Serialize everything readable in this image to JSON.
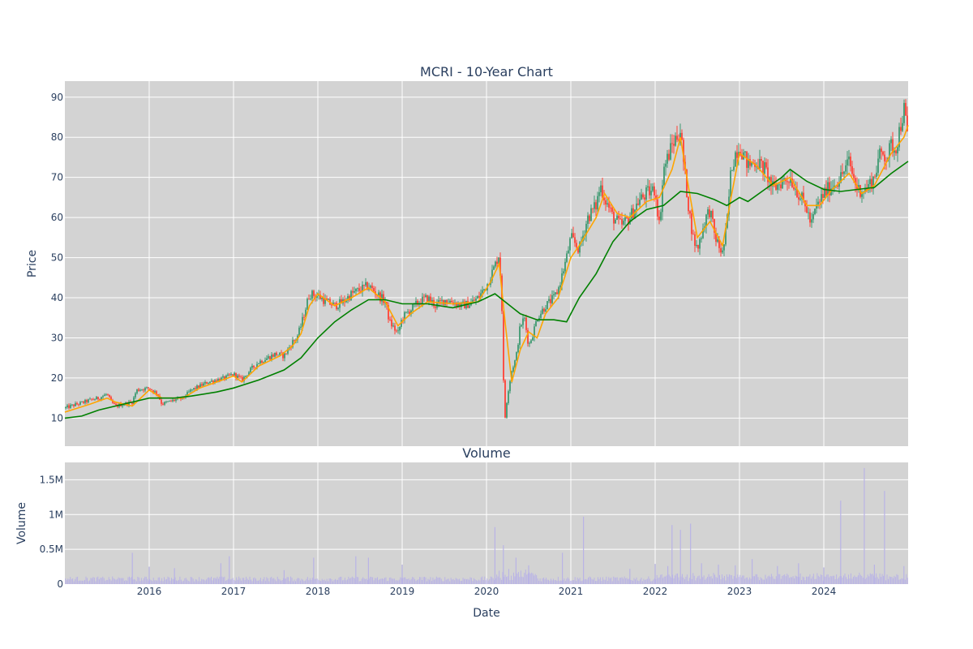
{
  "chart_data": [
    {
      "type": "candlestick",
      "title": "MCRI - 10-Year Chart",
      "ylabel": "Price",
      "ylim": [
        3,
        94
      ],
      "yticks": [
        10,
        20,
        30,
        40,
        50,
        60,
        70,
        80,
        90
      ],
      "grid": true,
      "colors": {
        "increasing": "#3d9970",
        "decreasing": "#ff4136",
        "ma_short": "#ffa500",
        "ma_long": "#008000",
        "plot_bg": "#d3d3d3"
      },
      "close_series": [
        [
          2015.0,
          12.5
        ],
        [
          2015.1,
          13.2
        ],
        [
          2015.2,
          13.8
        ],
        [
          2015.3,
          14.5
        ],
        [
          2015.4,
          15.0
        ],
        [
          2015.5,
          16.0
        ],
        [
          2015.55,
          14.0
        ],
        [
          2015.6,
          13.0
        ],
        [
          2015.7,
          13.5
        ],
        [
          2015.8,
          14.0
        ],
        [
          2015.85,
          17.0
        ],
        [
          2016.0,
          17.5
        ],
        [
          2016.1,
          16.0
        ],
        [
          2016.15,
          13.5
        ],
        [
          2016.3,
          14.5
        ],
        [
          2016.4,
          15.0
        ],
        [
          2016.5,
          17.0
        ],
        [
          2016.7,
          19.0
        ],
        [
          2016.8,
          19.5
        ],
        [
          2016.9,
          20.0
        ],
        [
          2017.0,
          21.0
        ],
        [
          2017.1,
          19.5
        ],
        [
          2017.2,
          22.0
        ],
        [
          2017.3,
          24.0
        ],
        [
          2017.4,
          25.0
        ],
        [
          2017.5,
          26.0
        ],
        [
          2017.6,
          25.5
        ],
        [
          2017.7,
          29.0
        ],
        [
          2017.75,
          30.0
        ],
        [
          2017.8,
          33.0
        ],
        [
          2017.85,
          37.0
        ],
        [
          2017.9,
          41.0
        ],
        [
          2018.0,
          40.5
        ],
        [
          2018.1,
          39.0
        ],
        [
          2018.2,
          38.0
        ],
        [
          2018.3,
          39.0
        ],
        [
          2018.4,
          41.0
        ],
        [
          2018.5,
          42.0
        ],
        [
          2018.6,
          43.0
        ],
        [
          2018.7,
          41.0
        ],
        [
          2018.8,
          39.0
        ],
        [
          2018.85,
          34.0
        ],
        [
          2018.95,
          31.0
        ],
        [
          2019.0,
          35.0
        ],
        [
          2019.1,
          37.0
        ],
        [
          2019.2,
          39.0
        ],
        [
          2019.3,
          40.0
        ],
        [
          2019.4,
          38.0
        ],
        [
          2019.5,
          39.5
        ],
        [
          2019.6,
          39.0
        ],
        [
          2019.7,
          38.0
        ],
        [
          2019.8,
          38.5
        ],
        [
          2019.9,
          40.0
        ],
        [
          2020.0,
          43.0
        ],
        [
          2020.1,
          48.0
        ],
        [
          2020.15,
          51.0
        ],
        [
          2020.18,
          40.0
        ],
        [
          2020.2,
          20.0
        ],
        [
          2020.22,
          10.0
        ],
        [
          2020.25,
          16.0
        ],
        [
          2020.3,
          22.0
        ],
        [
          2020.35,
          25.0
        ],
        [
          2020.4,
          33.0
        ],
        [
          2020.45,
          35.0
        ],
        [
          2020.5,
          28.0
        ],
        [
          2020.55,
          31.0
        ],
        [
          2020.6,
          35.0
        ],
        [
          2020.7,
          38.0
        ],
        [
          2020.8,
          40.0
        ],
        [
          2020.85,
          42.0
        ],
        [
          2020.9,
          46.0
        ],
        [
          2020.95,
          50.0
        ],
        [
          2021.0,
          55.0
        ],
        [
          2021.1,
          52.0
        ],
        [
          2021.2,
          60.0
        ],
        [
          2021.3,
          63.0
        ],
        [
          2021.35,
          68.0
        ],
        [
          2021.4,
          65.0
        ],
        [
          2021.5,
          60.0
        ],
        [
          2021.6,
          58.0
        ],
        [
          2021.7,
          60.0
        ],
        [
          2021.8,
          64.0
        ],
        [
          2021.9,
          66.0
        ],
        [
          2022.0,
          67.0
        ],
        [
          2022.05,
          58.0
        ],
        [
          2022.1,
          72.0
        ],
        [
          2022.2,
          78.0
        ],
        [
          2022.3,
          82.0
        ],
        [
          2022.33,
          75.0
        ],
        [
          2022.4,
          62.0
        ],
        [
          2022.45,
          55.0
        ],
        [
          2022.5,
          52.0
        ],
        [
          2022.55,
          56.0
        ],
        [
          2022.6,
          60.0
        ],
        [
          2022.65,
          62.0
        ],
        [
          2022.7,
          56.0
        ],
        [
          2022.75,
          53.0
        ],
        [
          2022.8,
          51.0
        ],
        [
          2022.85,
          58.0
        ],
        [
          2022.9,
          72.0
        ],
        [
          2022.95,
          76.0
        ],
        [
          2023.0,
          78.0
        ],
        [
          2023.1,
          73.0
        ],
        [
          2023.2,
          74.0
        ],
        [
          2023.3,
          72.0
        ],
        [
          2023.4,
          67.0
        ],
        [
          2023.5,
          69.0
        ],
        [
          2023.6,
          70.0
        ],
        [
          2023.7,
          66.0
        ],
        [
          2023.8,
          62.0
        ],
        [
          2023.85,
          58.0
        ],
        [
          2023.9,
          62.0
        ],
        [
          2024.0,
          66.0
        ],
        [
          2024.1,
          68.0
        ],
        [
          2024.2,
          70.0
        ],
        [
          2024.3,
          74.0
        ],
        [
          2024.35,
          70.0
        ],
        [
          2024.4,
          67.0
        ],
        [
          2024.5,
          67.0
        ],
        [
          2024.6,
          70.0
        ],
        [
          2024.65,
          75.0
        ],
        [
          2024.7,
          76.0
        ],
        [
          2024.75,
          75.0
        ],
        [
          2024.8,
          78.0
        ],
        [
          2024.85,
          77.0
        ],
        [
          2024.9,
          82.0
        ],
        [
          2024.95,
          87.0
        ],
        [
          2024.98,
          83.0
        ],
        [
          2025.0,
          78.0
        ]
      ],
      "ma_short": [
        [
          2015.0,
          11.5
        ],
        [
          2015.3,
          13.5
        ],
        [
          2015.5,
          15.0
        ],
        [
          2015.6,
          14.0
        ],
        [
          2015.8,
          13.0
        ],
        [
          2016.0,
          17.0
        ],
        [
          2016.15,
          15.0
        ],
        [
          2016.4,
          15.0
        ],
        [
          2016.6,
          17.5
        ],
        [
          2016.8,
          19.0
        ],
        [
          2017.0,
          20.5
        ],
        [
          2017.1,
          19.0
        ],
        [
          2017.3,
          23.0
        ],
        [
          2017.55,
          25.5
        ],
        [
          2017.7,
          28.0
        ],
        [
          2017.8,
          31.0
        ],
        [
          2017.9,
          38.0
        ],
        [
          2018.0,
          41.0
        ],
        [
          2018.2,
          38.0
        ],
        [
          2018.4,
          40.0
        ],
        [
          2018.6,
          42.5
        ],
        [
          2018.8,
          39.0
        ],
        [
          2018.95,
          33.0
        ],
        [
          2019.1,
          36.0
        ],
        [
          2019.3,
          39.0
        ],
        [
          2019.6,
          38.5
        ],
        [
          2019.9,
          39.0
        ],
        [
          2020.05,
          44.0
        ],
        [
          2020.15,
          48.5
        ],
        [
          2020.22,
          34.0
        ],
        [
          2020.3,
          19.0
        ],
        [
          2020.4,
          27.0
        ],
        [
          2020.5,
          31.5
        ],
        [
          2020.6,
          30.0
        ],
        [
          2020.7,
          36.0
        ],
        [
          2020.85,
          40.0
        ],
        [
          2021.0,
          50.0
        ],
        [
          2021.1,
          53.0
        ],
        [
          2021.3,
          60.0
        ],
        [
          2021.4,
          66.0
        ],
        [
          2021.55,
          61.0
        ],
        [
          2021.7,
          60.0
        ],
        [
          2021.9,
          64.0
        ],
        [
          2022.05,
          65.0
        ],
        [
          2022.2,
          72.0
        ],
        [
          2022.3,
          80.0
        ],
        [
          2022.4,
          67.0
        ],
        [
          2022.5,
          55.0
        ],
        [
          2022.65,
          59.0
        ],
        [
          2022.8,
          53.0
        ],
        [
          2022.9,
          65.0
        ],
        [
          2023.0,
          76.0
        ],
        [
          2023.2,
          73.0
        ],
        [
          2023.4,
          68.0
        ],
        [
          2023.6,
          70.0
        ],
        [
          2023.8,
          63.0
        ],
        [
          2023.95,
          63.0
        ],
        [
          2024.1,
          67.0
        ],
        [
          2024.3,
          71.0
        ],
        [
          2024.45,
          66.0
        ],
        [
          2024.6,
          68.0
        ],
        [
          2024.8,
          76.0
        ],
        [
          2024.95,
          80.0
        ],
        [
          2025.0,
          83.0
        ]
      ],
      "ma_long": [
        [
          2015.0,
          10.0
        ],
        [
          2015.2,
          10.5
        ],
        [
          2015.4,
          12.0
        ],
        [
          2015.6,
          13.0
        ],
        [
          2015.8,
          14.0
        ],
        [
          2016.0,
          15.0
        ],
        [
          2016.3,
          15.0
        ],
        [
          2016.5,
          15.5
        ],
        [
          2016.8,
          16.5
        ],
        [
          2017.0,
          17.5
        ],
        [
          2017.3,
          19.5
        ],
        [
          2017.6,
          22.0
        ],
        [
          2017.8,
          25.0
        ],
        [
          2018.0,
          30.0
        ],
        [
          2018.2,
          34.0
        ],
        [
          2018.4,
          37.0
        ],
        [
          2018.6,
          39.5
        ],
        [
          2018.8,
          39.5
        ],
        [
          2019.0,
          38.5
        ],
        [
          2019.3,
          38.5
        ],
        [
          2019.6,
          37.5
        ],
        [
          2019.9,
          39.0
        ],
        [
          2020.1,
          41.0
        ],
        [
          2020.4,
          36.0
        ],
        [
          2020.6,
          34.5
        ],
        [
          2020.8,
          34.5
        ],
        [
          2020.95,
          34.0
        ],
        [
          2021.1,
          40.0
        ],
        [
          2021.3,
          46.0
        ],
        [
          2021.5,
          54.0
        ],
        [
          2021.7,
          59.0
        ],
        [
          2021.9,
          62.0
        ],
        [
          2022.1,
          63.0
        ],
        [
          2022.3,
          66.5
        ],
        [
          2022.5,
          66.0
        ],
        [
          2022.7,
          64.5
        ],
        [
          2022.85,
          63.0
        ],
        [
          2023.0,
          65.0
        ],
        [
          2023.1,
          64.0
        ],
        [
          2023.3,
          67.0
        ],
        [
          2023.5,
          70.0
        ],
        [
          2023.6,
          72.0
        ],
        [
          2023.8,
          69.0
        ],
        [
          2024.0,
          67.0
        ],
        [
          2024.2,
          66.5
        ],
        [
          2024.4,
          67.0
        ],
        [
          2024.6,
          67.5
        ],
        [
          2024.8,
          71.0
        ],
        [
          2025.0,
          74.0
        ]
      ]
    },
    {
      "type": "bar",
      "title": "Volume",
      "xlabel": "Date",
      "ylabel": "Volume",
      "ylim": [
        0,
        1750000
      ],
      "ytick_labels": [
        "0",
        "0.5M",
        "1M",
        "1.5M"
      ],
      "yticks": [
        0,
        500000,
        1000000,
        1500000
      ],
      "xticks": [
        2016,
        2017,
        2018,
        2019,
        2020,
        2021,
        2022,
        2023,
        2024
      ],
      "xtick_labels": [
        "2016",
        "2017",
        "2018",
        "2019",
        "2020",
        "2021",
        "2022",
        "2023",
        "2024"
      ],
      "xlim": [
        2015.0,
        2025.0
      ],
      "colors": {
        "bar": "#b9b3e6",
        "plot_bg": "#d3d3d3"
      },
      "spikes": [
        [
          2015.8,
          450000
        ],
        [
          2016.0,
          250000
        ],
        [
          2016.3,
          230000
        ],
        [
          2016.85,
          300000
        ],
        [
          2016.95,
          400000
        ],
        [
          2017.6,
          200000
        ],
        [
          2017.95,
          380000
        ],
        [
          2018.45,
          400000
        ],
        [
          2018.6,
          380000
        ],
        [
          2019.0,
          280000
        ],
        [
          2020.1,
          820000
        ],
        [
          2020.2,
          560000
        ],
        [
          2020.35,
          380000
        ],
        [
          2020.5,
          270000
        ],
        [
          2020.9,
          450000
        ],
        [
          2021.15,
          970000
        ],
        [
          2021.7,
          220000
        ],
        [
          2022.0,
          290000
        ],
        [
          2022.15,
          260000
        ],
        [
          2022.2,
          850000
        ],
        [
          2022.3,
          780000
        ],
        [
          2022.42,
          870000
        ],
        [
          2022.55,
          300000
        ],
        [
          2022.75,
          280000
        ],
        [
          2022.95,
          270000
        ],
        [
          2023.15,
          360000
        ],
        [
          2023.45,
          260000
        ],
        [
          2023.7,
          300000
        ],
        [
          2024.0,
          240000
        ],
        [
          2024.2,
          1200000
        ],
        [
          2024.48,
          1670000
        ],
        [
          2024.6,
          280000
        ],
        [
          2024.72,
          1340000
        ],
        [
          2024.95,
          260000
        ]
      ]
    }
  ]
}
